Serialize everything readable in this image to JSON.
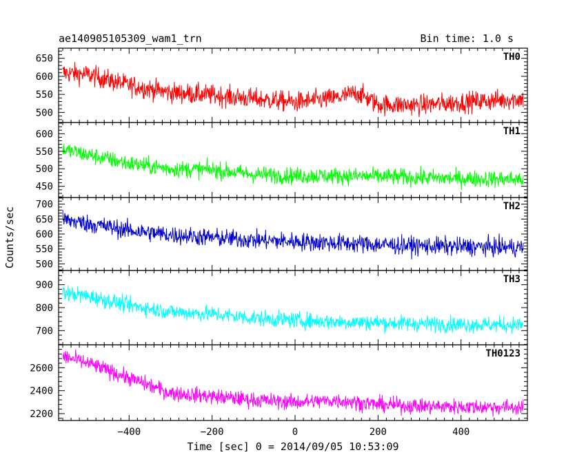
{
  "chart_data": {
    "type": "line",
    "title": "ae140905105309_wam1_trn",
    "bin_time_label": "Bin time: 1.0 s",
    "xlabel": "Time [sec] 0 = 2014/09/05 10:53:09",
    "ylabel": "Counts/sec",
    "xlim": [
      -570,
      560
    ],
    "x_ticks": [
      "−400",
      "−200",
      "0",
      "200",
      "400"
    ],
    "x_tick_values": [
      -400,
      -200,
      0,
      200,
      400
    ],
    "x_range_data": [
      -560,
      550
    ],
    "grid": false,
    "panels": [
      {
        "name": "TH0",
        "color": "#ff0000",
        "ylim": [
          472,
          678
        ],
        "ticks": [
          500,
          550,
          600,
          650
        ],
        "trend": {
          "x": [
            -560,
            -500,
            -400,
            -300,
            -200,
            -100,
            0,
            100,
            150,
            200,
            300,
            400,
            550
          ],
          "y": [
            610,
            605,
            575,
            555,
            548,
            538,
            528,
            540,
            555,
            522,
            520,
            528,
            538
          ]
        },
        "noise": 26
      },
      {
        "name": "TH1",
        "color": "#00ff00",
        "ylim": [
          418,
          632
        ],
        "ticks": [
          450,
          500,
          550,
          600
        ],
        "trend": {
          "x": [
            -560,
            -500,
            -400,
            -300,
            -200,
            -100,
            0,
            100,
            200,
            300,
            400,
            550
          ],
          "y": [
            555,
            540,
            515,
            500,
            497,
            484,
            480,
            480,
            478,
            475,
            472,
            470
          ]
        },
        "noise": 22
      },
      {
        "name": "TH2",
        "color": "#0000cc",
        "ylim": [
          478,
          722
        ],
        "ticks": [
          500,
          550,
          600,
          650,
          700
        ],
        "trend": {
          "x": [
            -560,
            -500,
            -400,
            -300,
            -200,
            -100,
            0,
            100,
            200,
            300,
            400,
            550
          ],
          "y": [
            648,
            635,
            612,
            597,
            588,
            580,
            575,
            570,
            565,
            560,
            558,
            555
          ]
        },
        "noise": 28
      },
      {
        "name": "TH3",
        "color": "#00ffff",
        "ylim": [
          638,
          962
        ],
        "ticks": [
          700,
          800,
          900
        ],
        "trend": {
          "x": [
            -560,
            -500,
            -400,
            -300,
            -200,
            -100,
            0,
            100,
            200,
            300,
            400,
            550
          ],
          "y": [
            865,
            850,
            810,
            782,
            772,
            755,
            745,
            738,
            735,
            730,
            727,
            725
          ]
        },
        "noise": 32
      },
      {
        "name": "TH0123",
        "color": "#ff00ff",
        "ylim": [
          2140,
          2800
        ],
        "ticks": [
          2200,
          2400,
          2600
        ],
        "trend": {
          "x": [
            -560,
            -500,
            -400,
            -300,
            -200,
            -100,
            0,
            100,
            200,
            300,
            400,
            550
          ],
          "y": [
            2700,
            2640,
            2510,
            2380,
            2350,
            2320,
            2300,
            2315,
            2280,
            2265,
            2260,
            2255
          ]
        },
        "noise": 62
      }
    ]
  }
}
